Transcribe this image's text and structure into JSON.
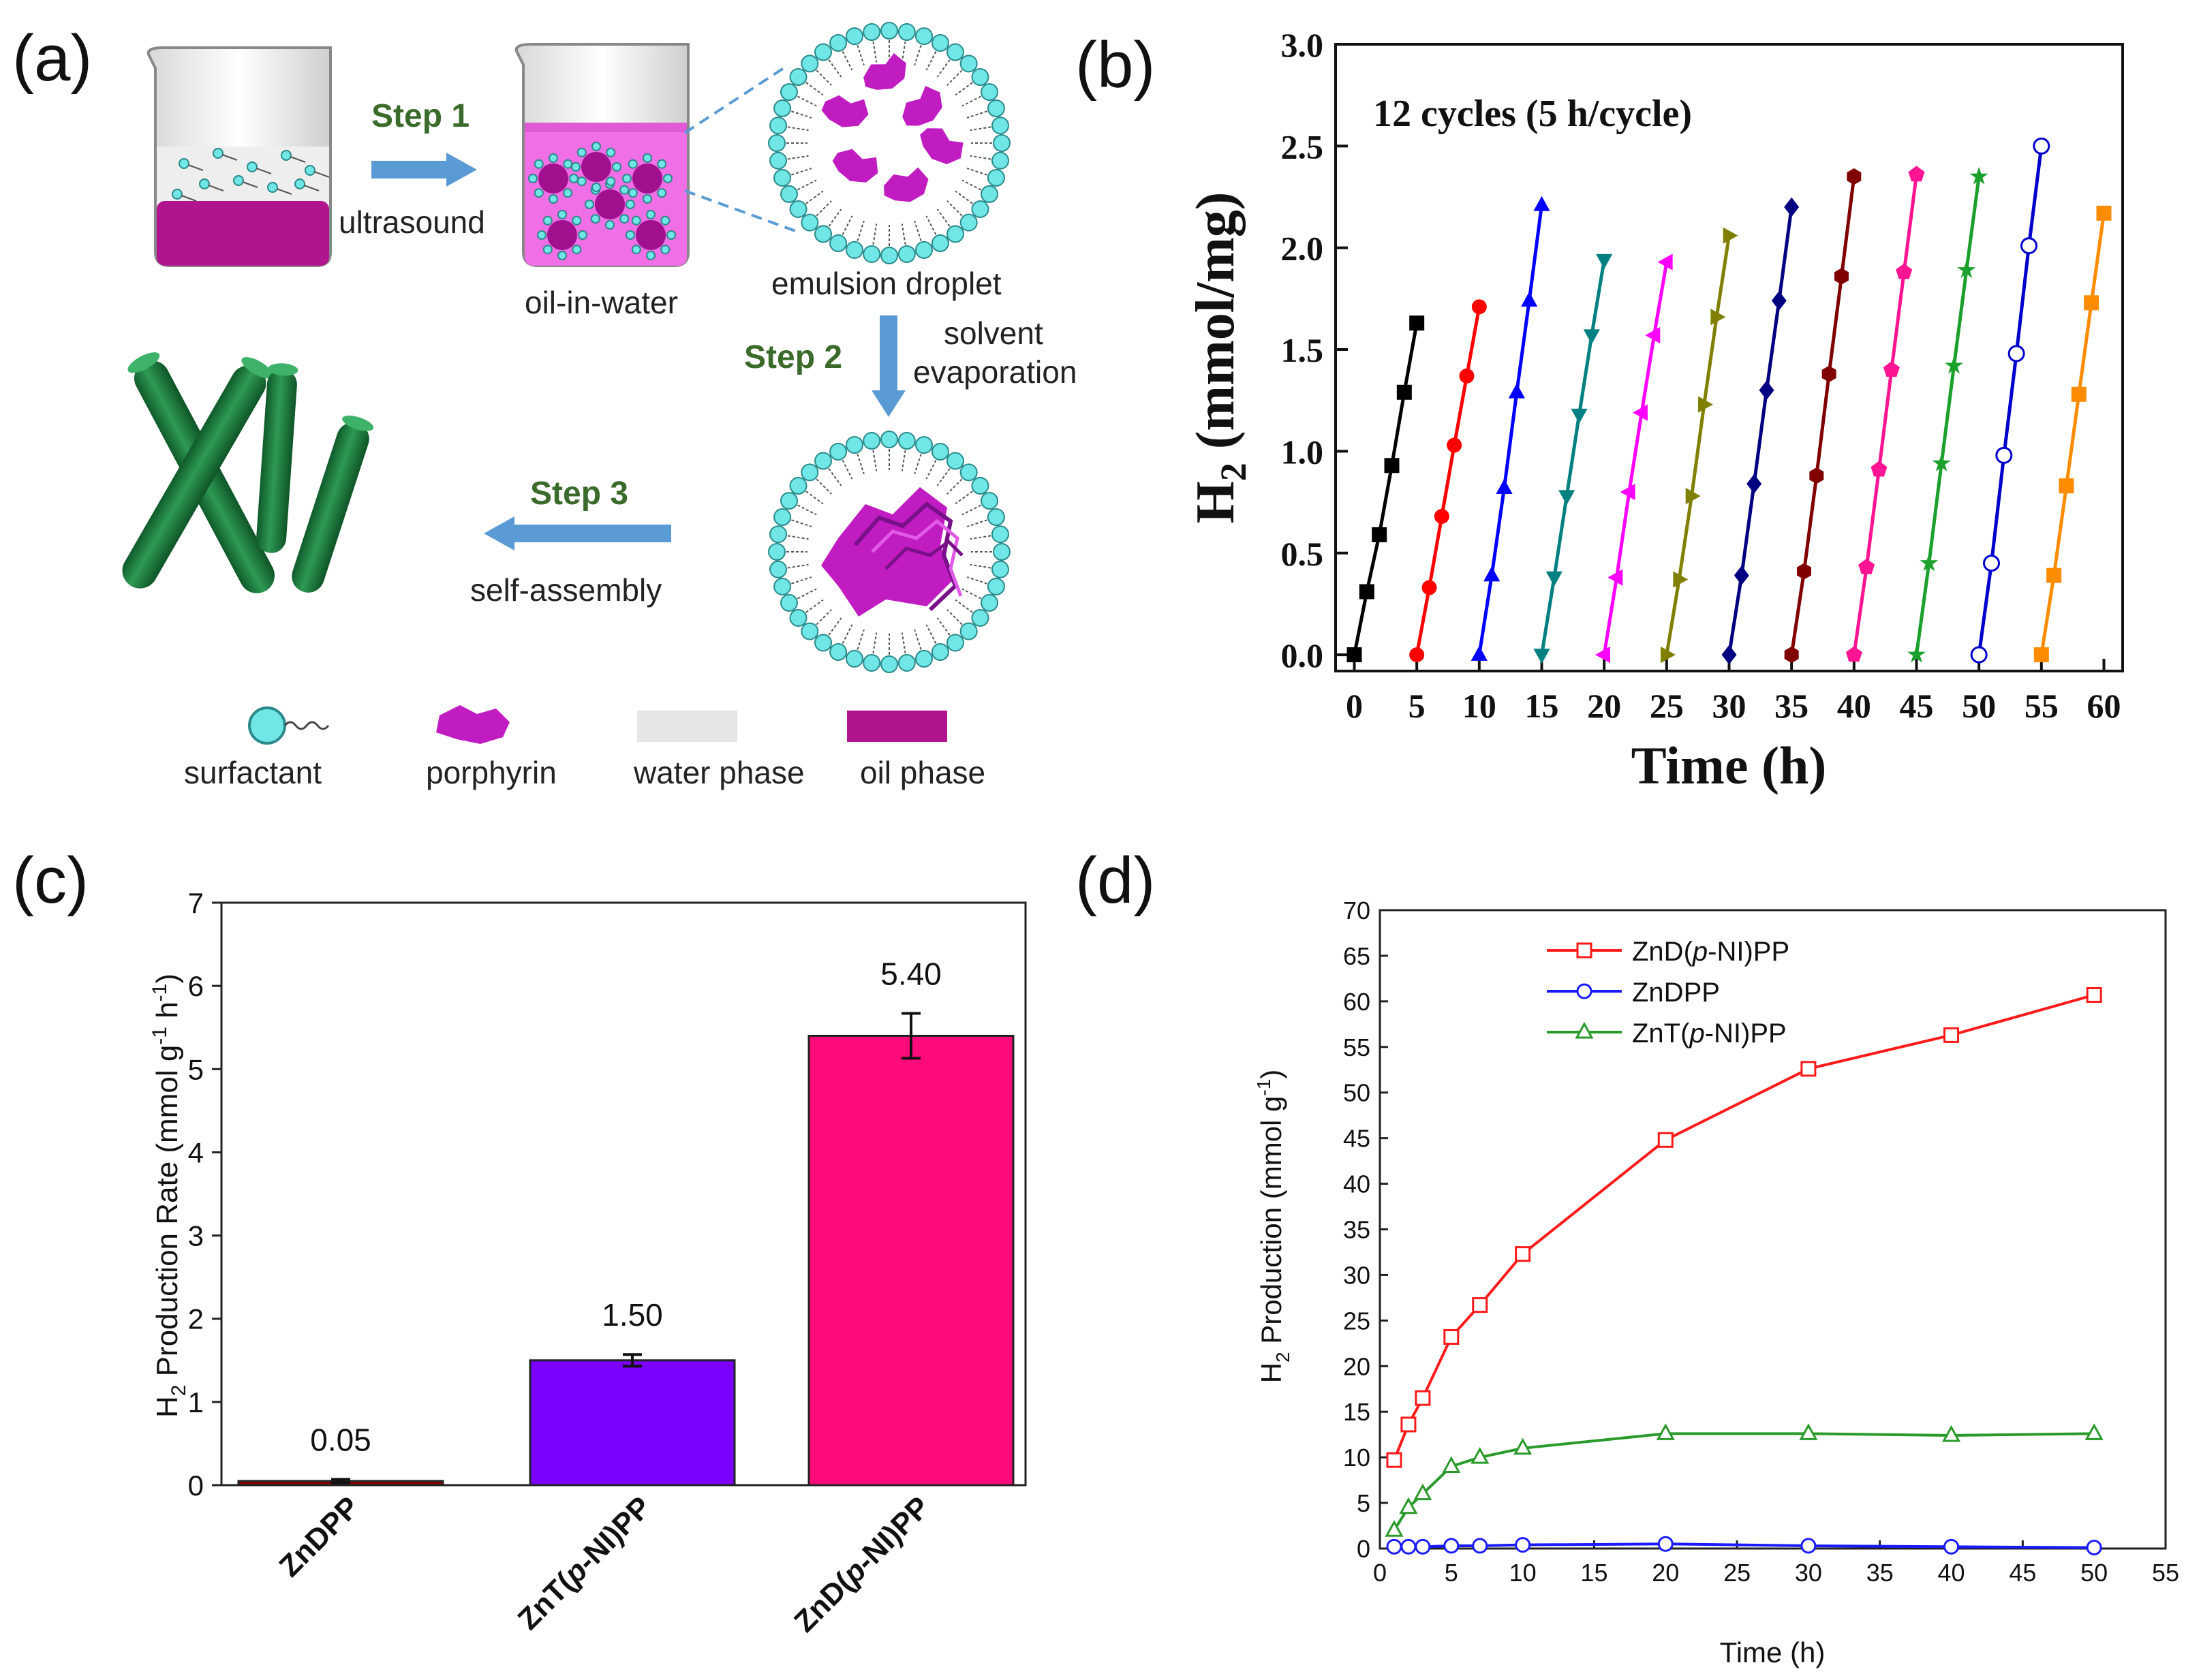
{
  "panels": {
    "a": {
      "label": "(a)",
      "step1": "Step 1",
      "step1_method": "ultrasound",
      "step2": "Step 2",
      "step2_method_line1": "solvent",
      "step2_method_line2": "evaporation",
      "step3": "Step 3",
      "step3_method": "self-assembly",
      "beaker2_caption": "oil-in-water",
      "droplet_caption": "emulsion droplet",
      "legend": [
        "surfactant",
        "porphyrin",
        "water phase",
        "oil phase"
      ],
      "colors": {
        "oil": "#b0158f",
        "emulsion": "#f06ee6",
        "porphyrin": "#c11cc2",
        "surfactant": "#71e6e6",
        "rods": "#1f7a3e",
        "arrow": "#5b9bd5"
      }
    },
    "b": {
      "label": "(b)"
    },
    "c": {
      "label": "(c)"
    },
    "d": {
      "label": "(d)"
    }
  },
  "chart_data": [
    {
      "panel": "b",
      "type": "line",
      "annotation": "12 cycles (5 h/cycle)",
      "xlabel": "Time (h)",
      "ylabel": "H",
      "ylabel_sub": "2",
      "ylabel_rest": " (mmol/mg)",
      "xlim": [
        -1.5,
        61.5
      ],
      "ylim": [
        -0.08,
        3.0
      ],
      "xticks": [
        0,
        5,
        10,
        15,
        20,
        25,
        30,
        35,
        40,
        45,
        50,
        55,
        60
      ],
      "yticks": [
        0.0,
        0.5,
        1.0,
        1.5,
        2.0,
        2.5,
        3.0
      ],
      "ytick_labels": [
        "0.0",
        "0.5",
        "1.0",
        "1.5",
        "2.0",
        "2.5",
        "3.0"
      ],
      "series": [
        {
          "color": "#000000",
          "marker": "square",
          "x": [
            0,
            1,
            2,
            3,
            4,
            5
          ],
          "y": [
            0.0,
            0.31,
            0.59,
            0.93,
            1.29,
            1.63
          ]
        },
        {
          "color": "#ff0000",
          "marker": "circle",
          "x": [
            5,
            6,
            7,
            8,
            9,
            10
          ],
          "y": [
            0.0,
            0.33,
            0.68,
            1.03,
            1.37,
            1.71
          ]
        },
        {
          "color": "#0000ff",
          "marker": "triangle",
          "x": [
            10,
            11,
            12,
            13,
            14,
            15
          ],
          "y": [
            0.0,
            0.39,
            0.82,
            1.29,
            1.74,
            2.21
          ]
        },
        {
          "color": "#008080",
          "marker": "tri-down",
          "x": [
            15,
            16,
            17,
            18,
            19,
            20
          ],
          "y": [
            0.0,
            0.38,
            0.78,
            1.18,
            1.57,
            1.94
          ]
        },
        {
          "color": "#ff00ff",
          "marker": "tri-left",
          "x": [
            20,
            21,
            22,
            23,
            24,
            25
          ],
          "y": [
            0.0,
            0.38,
            0.8,
            1.19,
            1.57,
            1.93
          ]
        },
        {
          "color": "#808000",
          "marker": "tri-right",
          "x": [
            25,
            26,
            27,
            28,
            29,
            30
          ],
          "y": [
            0.0,
            0.37,
            0.78,
            1.23,
            1.66,
            2.06
          ]
        },
        {
          "color": "#000080",
          "marker": "diamond",
          "x": [
            30,
            31,
            32,
            33,
            34,
            35
          ],
          "y": [
            0.0,
            0.39,
            0.84,
            1.3,
            1.74,
            2.2
          ]
        },
        {
          "color": "#800000",
          "marker": "hexagon",
          "x": [
            35,
            36,
            37,
            38,
            39,
            40
          ],
          "y": [
            0.0,
            0.41,
            0.88,
            1.38,
            1.86,
            2.35
          ]
        },
        {
          "color": "#ff1493",
          "marker": "pentagon",
          "x": [
            40,
            41,
            42,
            43,
            44,
            45
          ],
          "y": [
            0.0,
            0.43,
            0.91,
            1.4,
            1.88,
            2.36
          ]
        },
        {
          "color": "#1ca02c",
          "marker": "star",
          "x": [
            45,
            46,
            47,
            48,
            49,
            50
          ],
          "y": [
            0.0,
            0.45,
            0.94,
            1.42,
            1.89,
            2.35
          ]
        },
        {
          "color": "#0000cd",
          "marker": "open-circle",
          "x": [
            50,
            51,
            52,
            53,
            54,
            55
          ],
          "y": [
            0.0,
            0.45,
            0.98,
            1.48,
            2.01,
            2.5
          ]
        },
        {
          "color": "#ff8c00",
          "marker": "square",
          "x": [
            55,
            56,
            57,
            58,
            59,
            60
          ],
          "y": [
            0.0,
            0.39,
            0.83,
            1.28,
            1.73,
            2.17
          ]
        }
      ]
    },
    {
      "panel": "c",
      "type": "bar",
      "categories": [
        "ZnDPP",
        "ZnT(p-NI)PP",
        "ZnD(p-NI)PP"
      ],
      "category_parts": [
        [
          "ZnDPP",
          "",
          ""
        ],
        [
          "ZnT(",
          "p",
          "-NI)PP"
        ],
        [
          "ZnD(",
          "p",
          "-NI)PP"
        ]
      ],
      "values": [
        0.05,
        1.5,
        5.4
      ],
      "errors": [
        0.02,
        0.07,
        0.27
      ],
      "data_labels": [
        "0.05",
        "1.50",
        "5.40"
      ],
      "colors": [
        "#8b0000",
        "#7b00ff",
        "#ff0a7a"
      ],
      "ylabel": "H",
      "ylabel_sub": "2",
      "ylabel_rest": " Production Rate (mmol g",
      "ylabel_sup1": "-1",
      "ylabel_mid": " h",
      "ylabel_sup2": "-1",
      "ylabel_end": ")",
      "ylim": [
        0,
        7
      ],
      "yticks": [
        0,
        1,
        2,
        3,
        4,
        5,
        6,
        7
      ]
    },
    {
      "panel": "d",
      "type": "line",
      "xlabel": "Time (h)",
      "ylabel": "H",
      "ylabel_sub": "2",
      "ylabel_rest": " Production (mmol g",
      "ylabel_sup": "-1",
      "ylabel_end": ")",
      "xlim": [
        0,
        55
      ],
      "ylim": [
        0,
        70
      ],
      "xticks": [
        0,
        5,
        10,
        15,
        20,
        25,
        30,
        35,
        40,
        45,
        50,
        55
      ],
      "yticks": [
        0,
        5,
        10,
        15,
        20,
        25,
        30,
        35,
        40,
        45,
        50,
        55,
        60,
        65,
        70
      ],
      "legend_position": "top-left",
      "series": [
        {
          "name": "ZnD(p-NI)PP",
          "name_parts": [
            "ZnD(",
            "p",
            "-NI)PP"
          ],
          "color": "#ff1a1a",
          "marker": "open-square",
          "x": [
            1,
            2,
            3,
            5,
            7,
            10,
            20,
            30,
            40,
            50
          ],
          "y": [
            9.7,
            13.6,
            16.5,
            23.2,
            26.7,
            32.3,
            44.8,
            52.6,
            56.3,
            60.7
          ]
        },
        {
          "name": "ZnDPP",
          "name_parts": [
            "ZnDPP",
            "",
            ""
          ],
          "color": "#1a1aff",
          "marker": "open-circle",
          "x": [
            1,
            2,
            3,
            5,
            7,
            10,
            20,
            30,
            40,
            50
          ],
          "y": [
            0.2,
            0.2,
            0.2,
            0.3,
            0.3,
            0.4,
            0.5,
            0.3,
            0.2,
            0.1
          ]
        },
        {
          "name": "ZnT(p-NI)PP",
          "name_parts": [
            "ZnT(",
            "p",
            "-NI)PP"
          ],
          "color": "#2a9a2a",
          "marker": "open-triangle",
          "x": [
            1,
            2,
            3,
            5,
            7,
            10,
            20,
            30,
            40,
            50
          ],
          "y": [
            2.0,
            4.5,
            6.0,
            9.0,
            10.0,
            11.0,
            12.6,
            12.6,
            12.4,
            12.6
          ]
        }
      ]
    }
  ]
}
